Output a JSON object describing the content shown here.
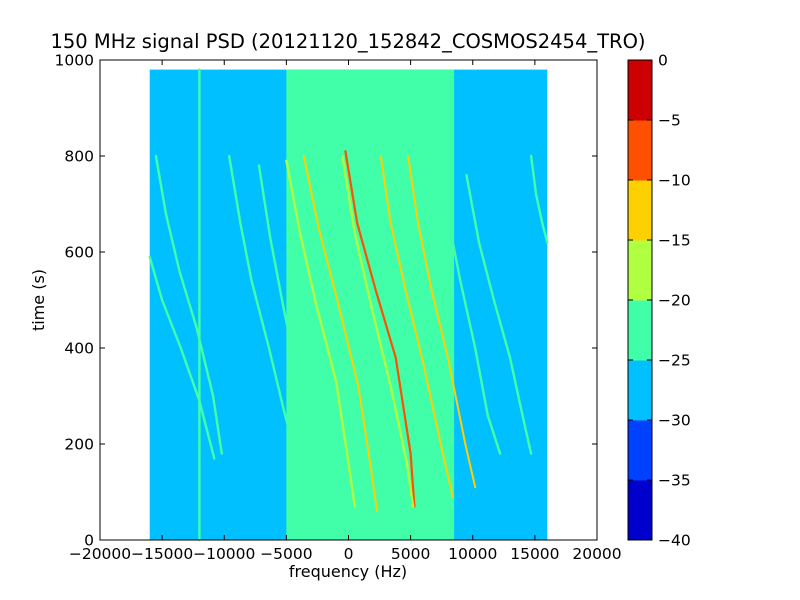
{
  "chart_data": {
    "type": "heatmap",
    "title": "150 MHz signal PSD (20121120_152842_COSMOS2454_TRO)",
    "xlabel": "frequency (Hz)",
    "ylabel": "time (s)",
    "xlim": [
      -20000,
      20000
    ],
    "ylim": [
      0,
      1000
    ],
    "x_ticks": [
      -20000,
      -15000,
      -10000,
      -5000,
      0,
      5000,
      10000,
      15000,
      20000
    ],
    "x_tick_labels": [
      "−20000",
      "−15000",
      "−10000",
      "−5000",
      "0",
      "5000",
      "10000",
      "15000",
      "20000"
    ],
    "y_ticks": [
      0,
      200,
      400,
      600,
      800,
      1000
    ],
    "y_tick_labels": [
      "0",
      "200",
      "400",
      "600",
      "800",
      "1000"
    ],
    "data_extent": {
      "x": [
        -16000,
        16000
      ],
      "y": [
        0,
        980
      ]
    },
    "central_band_x": [
      -5000,
      8500
    ],
    "background_level": -27.5,
    "band_level": -22.5,
    "colorbar": {
      "levels": [
        -40,
        -35,
        -30,
        -25,
        -20,
        -15,
        -10,
        -5,
        0
      ],
      "tick_labels": [
        "−40",
        "−35",
        "−30",
        "−25",
        "−20",
        "−15",
        "−10",
        "−5",
        "0"
      ],
      "colors": [
        "#0000cc",
        "#0040ff",
        "#00c0ff",
        "#40ffa8",
        "#b0ff40",
        "#ffd000",
        "#ff5000",
        "#cc0000"
      ]
    },
    "traces": [
      {
        "name": "",
        "level": -12.5,
        "x": [
          -3600,
          -2400,
          -900,
          800,
          1800,
          2300
        ],
        "y": [
          800,
          650,
          500,
          320,
          150,
          60
        ]
      },
      {
        "name": "",
        "level": -7.5,
        "x": [
          -250,
          700,
          2200,
          3800,
          5000,
          5300
        ],
        "y": [
          810,
          660,
          520,
          380,
          180,
          70
        ]
      },
      {
        "name": "",
        "level": -12.5,
        "x": [
          2600,
          3400,
          4600,
          6000,
          7600,
          8400
        ],
        "y": [
          800,
          660,
          520,
          370,
          180,
          90
        ]
      },
      {
        "name": "",
        "level": -12.5,
        "x": [
          4800,
          5600,
          6700,
          8000,
          9400,
          10200
        ],
        "y": [
          800,
          660,
          520,
          380,
          200,
          110
        ]
      },
      {
        "name": "",
        "level": -17.5,
        "x": [
          -500,
          500,
          1900,
          3400,
          4700,
          5200
        ],
        "y": [
          800,
          640,
          480,
          320,
          160,
          70
        ]
      },
      {
        "name": "",
        "level": -17.5,
        "x": [
          -5000,
          -3900,
          -2600,
          -1000,
          0,
          500
        ],
        "y": [
          790,
          640,
          490,
          330,
          160,
          70
        ]
      },
      {
        "name": "",
        "level": -22.5,
        "x": [
          -7200,
          -6300,
          -5200,
          -4000,
          -3400
        ],
        "y": [
          780,
          630,
          480,
          330,
          240
        ]
      },
      {
        "name": "",
        "level": -22.5,
        "x": [
          -9600,
          -8700,
          -7800,
          -6400,
          -5200,
          -4400
        ],
        "y": [
          800,
          660,
          540,
          400,
          270,
          190
        ]
      },
      {
        "name": "",
        "level": -22.5,
        "x": [
          -15500,
          -14700,
          -13600,
          -12200,
          -10900,
          -10200
        ],
        "y": [
          800,
          680,
          560,
          440,
          300,
          180
        ]
      },
      {
        "name": "",
        "level": -22.5,
        "x": [
          -16000,
          -15000,
          -13500,
          -12000,
          -10800
        ],
        "y": [
          590,
          500,
          400,
          290,
          170
        ]
      },
      {
        "name": "",
        "level": -22.5,
        "x": [
          7200,
          8100,
          9000,
          10200,
          11200,
          12200
        ],
        "y": [
          800,
          660,
          540,
          400,
          260,
          180
        ]
      },
      {
        "name": "",
        "level": -22.5,
        "x": [
          9500,
          10500,
          11700,
          13000,
          14000,
          14700
        ],
        "y": [
          760,
          620,
          500,
          380,
          260,
          180
        ]
      },
      {
        "name": "",
        "level": -22.5,
        "x": [
          14700,
          15100,
          15600,
          16000
        ],
        "y": [
          800,
          720,
          660,
          620
        ]
      },
      {
        "name": "",
        "level": -22.5,
        "x": [
          -12000,
          -12000
        ],
        "y": [
          0,
          980
        ]
      }
    ]
  }
}
